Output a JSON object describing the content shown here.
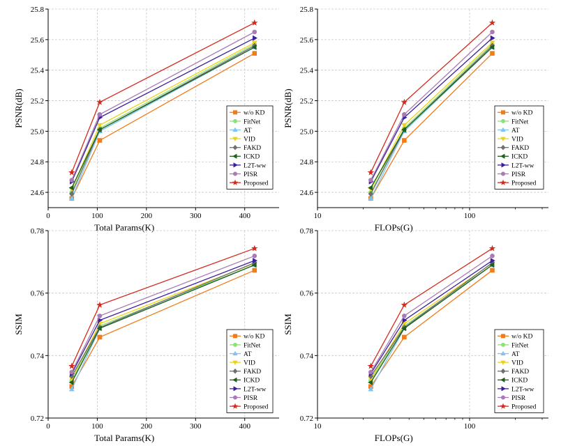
{
  "series_styles": [
    {
      "name": "w/o KD",
      "color": "#f07c1b",
      "marker": "square"
    },
    {
      "name": "FitNet",
      "color": "#8fe07a",
      "marker": "circle"
    },
    {
      "name": "AT",
      "color": "#7ec4f0",
      "marker": "triangle-up"
    },
    {
      "name": "VID",
      "color": "#eed21a",
      "marker": "triangle-down"
    },
    {
      "name": "FAKD",
      "color": "#6f6f6f",
      "marker": "diamond"
    },
    {
      "name": "ICKD",
      "color": "#1e5e1e",
      "marker": "triangle-left"
    },
    {
      "name": "L2T-ww",
      "color": "#3a1f9e",
      "marker": "triangle-right"
    },
    {
      "name": "PISR",
      "color": "#a97bb4",
      "marker": "circle"
    },
    {
      "name": "Proposed",
      "color": "#d42a1c",
      "marker": "star"
    }
  ],
  "chart_data": [
    {
      "type": "line",
      "xlabel": "Total Params(K)",
      "ylabel": "PSNR(dB)",
      "xscale": "linear",
      "xlim": [
        0,
        470
      ],
      "ylim": [
        24.5,
        25.8
      ],
      "xticks": [
        0,
        100,
        200,
        300,
        400
      ],
      "xtick_labels": [
        "0",
        "100",
        "200",
        "300",
        "400"
      ],
      "yticks": [
        24.6,
        24.8,
        25.0,
        25.2,
        25.4,
        25.6,
        25.8
      ],
      "ytick_labels": [
        "24.6",
        "24.8",
        "25.0",
        "25.2",
        "25.4",
        "25.6",
        "25.8"
      ],
      "grid": true,
      "legend": "right",
      "x": [
        48,
        105,
        420
      ],
      "series": [
        {
          "name": "w/o KD",
          "values": [
            24.56,
            24.94,
            25.51
          ]
        },
        {
          "name": "FitNet",
          "values": [
            24.6,
            25.02,
            25.57
          ]
        },
        {
          "name": "AT",
          "values": [
            24.56,
            25.0,
            25.55
          ]
        },
        {
          "name": "VID",
          "values": [
            24.62,
            25.04,
            25.58
          ]
        },
        {
          "name": "FAKD",
          "values": [
            24.59,
            25.01,
            25.56
          ]
        },
        {
          "name": "ICKD",
          "values": [
            24.63,
            25.01,
            25.55
          ]
        },
        {
          "name": "L2T-ww",
          "values": [
            24.67,
            25.09,
            25.61
          ]
        },
        {
          "name": "PISR",
          "values": [
            24.68,
            25.11,
            25.65
          ]
        },
        {
          "name": "Proposed",
          "values": [
            24.73,
            25.19,
            25.71
          ]
        }
      ]
    },
    {
      "type": "line",
      "xlabel": "FLOPs(G)",
      "ylabel": "PSNR(dB)",
      "xscale": "log",
      "xlim": [
        10,
        330
      ],
      "ylim": [
        24.5,
        25.8
      ],
      "xticks": [
        10,
        100
      ],
      "xtick_labels": [
        "10",
        "100"
      ],
      "yticks": [
        24.6,
        24.8,
        25.0,
        25.2,
        25.4,
        25.6,
        25.8
      ],
      "ytick_labels": [
        "24.6",
        "24.8",
        "25.0",
        "25.2",
        "25.4",
        "25.6",
        "25.8"
      ],
      "grid": true,
      "legend": "right",
      "x": [
        22.4,
        37.2,
        141
      ],
      "series": [
        {
          "name": "w/o KD",
          "values": [
            24.56,
            24.94,
            25.51
          ]
        },
        {
          "name": "FitNet",
          "values": [
            24.6,
            25.02,
            25.57
          ]
        },
        {
          "name": "AT",
          "values": [
            24.56,
            25.0,
            25.55
          ]
        },
        {
          "name": "VID",
          "values": [
            24.62,
            25.04,
            25.58
          ]
        },
        {
          "name": "FAKD",
          "values": [
            24.59,
            25.01,
            25.56
          ]
        },
        {
          "name": "ICKD",
          "values": [
            24.63,
            25.01,
            25.55
          ]
        },
        {
          "name": "L2T-ww",
          "values": [
            24.67,
            25.09,
            25.61
          ]
        },
        {
          "name": "PISR",
          "values": [
            24.68,
            25.11,
            25.65
          ]
        },
        {
          "name": "Proposed",
          "values": [
            24.73,
            25.19,
            25.71
          ]
        }
      ]
    },
    {
      "type": "line",
      "xlabel": "Total Params(K)",
      "ylabel": "SSIM",
      "xscale": "linear",
      "xlim": [
        0,
        470
      ],
      "ylim": [
        0.72,
        0.78
      ],
      "xticks": [
        0,
        100,
        200,
        300,
        400
      ],
      "xtick_labels": [
        "0",
        "100",
        "200",
        "300",
        "400"
      ],
      "yticks": [
        0.72,
        0.74,
        0.76,
        0.78
      ],
      "ytick_labels": [
        "0.72",
        "0.74",
        "0.76",
        "0.78"
      ],
      "grid": true,
      "legend": "lower-right",
      "x": [
        48,
        105,
        420
      ],
      "series": [
        {
          "name": "w/o KD",
          "values": [
            0.7301,
            0.7459,
            0.7673
          ]
        },
        {
          "name": "FitNet",
          "values": [
            0.732,
            0.7495,
            0.769
          ]
        },
        {
          "name": "AT",
          "values": [
            0.7292,
            0.7487,
            0.769
          ]
        },
        {
          "name": "VID",
          "values": [
            0.7326,
            0.7502,
            0.7695
          ]
        },
        {
          "name": "FAKD",
          "values": [
            0.7334,
            0.749,
            0.7697
          ]
        },
        {
          "name": "ICKD",
          "values": [
            0.7314,
            0.7487,
            0.769
          ]
        },
        {
          "name": "L2T-ww",
          "values": [
            0.7342,
            0.7513,
            0.7704
          ]
        },
        {
          "name": "PISR",
          "values": [
            0.7347,
            0.7527,
            0.7719
          ]
        },
        {
          "name": "Proposed",
          "values": [
            0.7366,
            0.7562,
            0.7743
          ]
        }
      ]
    },
    {
      "type": "line",
      "xlabel": "FLOPs(G)",
      "ylabel": "SSIM",
      "xscale": "log",
      "xlim": [
        10,
        330
      ],
      "ylim": [
        0.72,
        0.78
      ],
      "xticks": [
        10,
        100
      ],
      "xtick_labels": [
        "10",
        "100"
      ],
      "yticks": [
        0.72,
        0.74,
        0.76,
        0.78
      ],
      "ytick_labels": [
        "0.72",
        "0.74",
        "0.76",
        "0.78"
      ],
      "grid": true,
      "legend": "lower-right",
      "x": [
        22.4,
        37.2,
        141
      ],
      "series": [
        {
          "name": "w/o KD",
          "values": [
            0.7301,
            0.7459,
            0.7673
          ]
        },
        {
          "name": "FitNet",
          "values": [
            0.732,
            0.7495,
            0.769
          ]
        },
        {
          "name": "AT",
          "values": [
            0.7292,
            0.7487,
            0.769
          ]
        },
        {
          "name": "VID",
          "values": [
            0.7326,
            0.7502,
            0.7695
          ]
        },
        {
          "name": "FAKD",
          "values": [
            0.7334,
            0.749,
            0.7697
          ]
        },
        {
          "name": "ICKD",
          "values": [
            0.7314,
            0.7487,
            0.769
          ]
        },
        {
          "name": "L2T-ww",
          "values": [
            0.7342,
            0.7513,
            0.7704
          ]
        },
        {
          "name": "PISR",
          "values": [
            0.7347,
            0.7527,
            0.7719
          ]
        },
        {
          "name": "Proposed",
          "values": [
            0.7366,
            0.7562,
            0.7743
          ]
        }
      ]
    }
  ]
}
